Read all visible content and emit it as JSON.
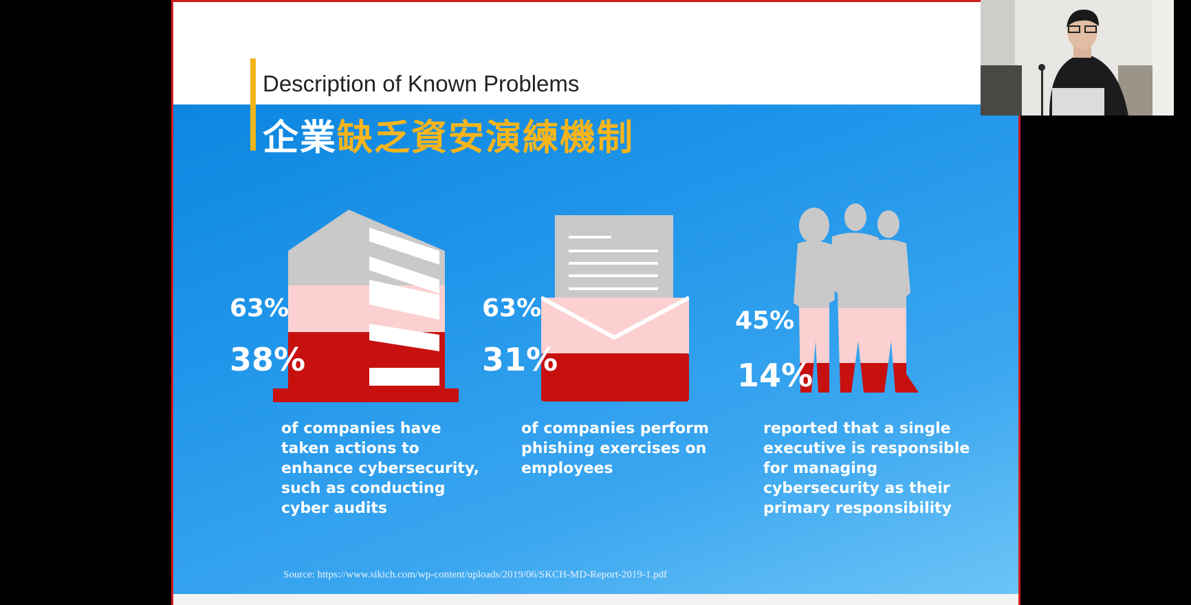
{
  "slide": {
    "subtitle": "Description of Known Problems",
    "title_part1": "企業",
    "title_part2": "缺乏資安演練機制",
    "colors": {
      "accent": "#f2b51a",
      "title_highlight": "#f7b51b",
      "slide_blue": "#1f93e8",
      "bar_red": "#c8100f",
      "bar_pink": "#fcd0d0",
      "icon_gray": "#c9c9c9"
    },
    "stats": [
      {
        "icon": "building-icon",
        "pct_top": "63%",
        "pct_bottom": "38%",
        "description": [
          "of companies have",
          "taken actions to",
          "enhance cybersecurity,",
          "such as conducting",
          "cyber audits"
        ]
      },
      {
        "icon": "envelope-icon",
        "pct_top": "63%",
        "pct_bottom": "31%",
        "description": [
          "of companies perform",
          "phishing exercises on",
          "employees"
        ]
      },
      {
        "icon": "people-icon",
        "pct_top": "45%",
        "pct_bottom": "14%",
        "description": [
          "reported that a single",
          "executive is responsible",
          "for managing",
          "cybersecurity as their",
          "primary responsibility"
        ]
      }
    ],
    "source": "Source: https://www.sikich.com/wp-content/uploads/2019/06/SKCH-MD-Report-2019-1.pdf"
  },
  "webcam": {
    "icon": "presenter-video-icon"
  }
}
